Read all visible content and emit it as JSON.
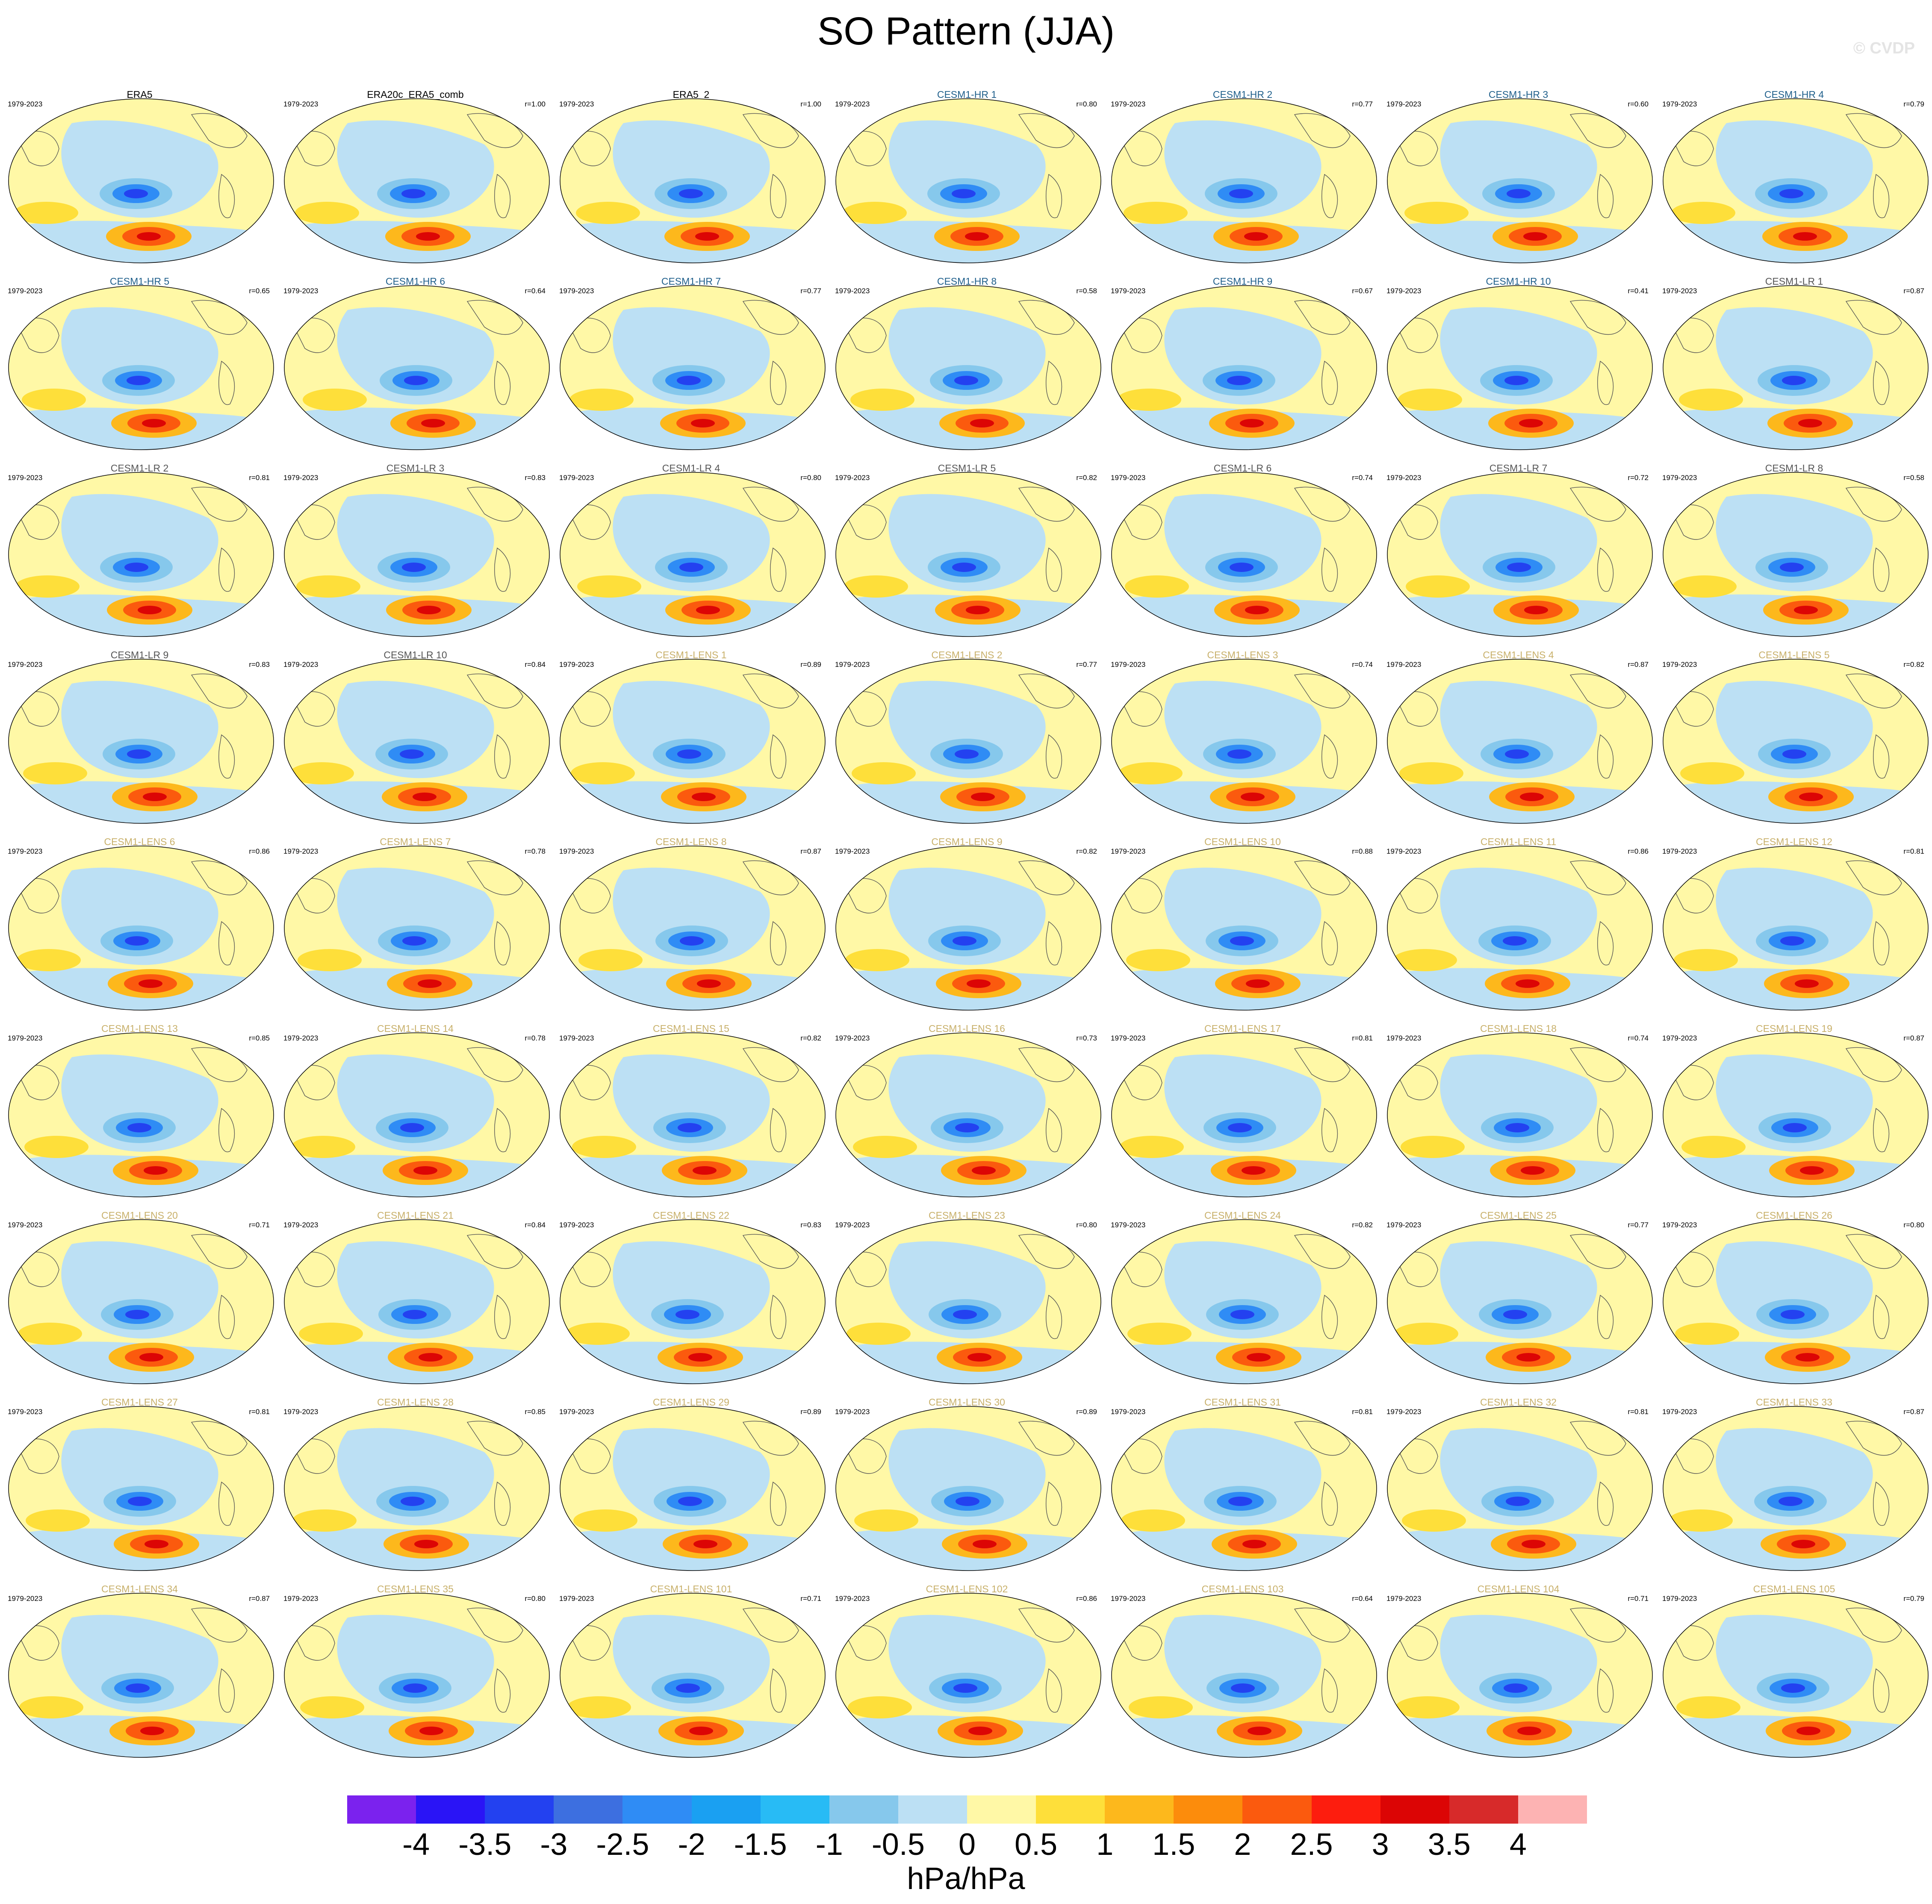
{
  "title": "SO Pattern (JJA)",
  "watermark": "© CVDP",
  "period": "1979-2023",
  "colors": {
    "reference": "#000000",
    "CESM1-HR": "#1f5f8b",
    "CESM1-LR": "#555555",
    "CESM1-LENS": "#c8b06a"
  },
  "panels": [
    {
      "title": "ERA5",
      "r": "",
      "group": "reference"
    },
    {
      "title": "ERA20c_ERA5_comb",
      "r": "r=1.00",
      "group": "reference"
    },
    {
      "title": "ERA5_2",
      "r": "r=1.00",
      "group": "reference"
    },
    {
      "title": "CESM1-HR 1",
      "r": "r=0.80",
      "group": "CESM1-HR"
    },
    {
      "title": "CESM1-HR 2",
      "r": "r=0.77",
      "group": "CESM1-HR"
    },
    {
      "title": "CESM1-HR 3",
      "r": "r=0.60",
      "group": "CESM1-HR"
    },
    {
      "title": "CESM1-HR 4",
      "r": "r=0.79",
      "group": "CESM1-HR"
    },
    {
      "title": "CESM1-HR 5",
      "r": "r=0.65",
      "group": "CESM1-HR"
    },
    {
      "title": "CESM1-HR 6",
      "r": "r=0.64",
      "group": "CESM1-HR"
    },
    {
      "title": "CESM1-HR 7",
      "r": "r=0.77",
      "group": "CESM1-HR"
    },
    {
      "title": "CESM1-HR 8",
      "r": "r=0.58",
      "group": "CESM1-HR"
    },
    {
      "title": "CESM1-HR 9",
      "r": "r=0.67",
      "group": "CESM1-HR"
    },
    {
      "title": "CESM1-HR 10",
      "r": "r=0.41",
      "group": "CESM1-HR"
    },
    {
      "title": "CESM1-LR 1",
      "r": "r=0.87",
      "group": "CESM1-LR"
    },
    {
      "title": "CESM1-LR 2",
      "r": "r=0.81",
      "group": "CESM1-LR"
    },
    {
      "title": "CESM1-LR 3",
      "r": "r=0.83",
      "group": "CESM1-LR"
    },
    {
      "title": "CESM1-LR 4",
      "r": "r=0.80",
      "group": "CESM1-LR"
    },
    {
      "title": "CESM1-LR 5",
      "r": "r=0.82",
      "group": "CESM1-LR"
    },
    {
      "title": "CESM1-LR 6",
      "r": "r=0.74",
      "group": "CESM1-LR"
    },
    {
      "title": "CESM1-LR 7",
      "r": "r=0.72",
      "group": "CESM1-LR"
    },
    {
      "title": "CESM1-LR 8",
      "r": "r=0.58",
      "group": "CESM1-LR"
    },
    {
      "title": "CESM1-LR 9",
      "r": "r=0.83",
      "group": "CESM1-LR"
    },
    {
      "title": "CESM1-LR 10",
      "r": "r=0.84",
      "group": "CESM1-LR"
    },
    {
      "title": "CESM1-LENS 1",
      "r": "r=0.89",
      "group": "CESM1-LENS"
    },
    {
      "title": "CESM1-LENS 2",
      "r": "r=0.77",
      "group": "CESM1-LENS"
    },
    {
      "title": "CESM1-LENS 3",
      "r": "r=0.74",
      "group": "CESM1-LENS"
    },
    {
      "title": "CESM1-LENS 4",
      "r": "r=0.87",
      "group": "CESM1-LENS"
    },
    {
      "title": "CESM1-LENS 5",
      "r": "r=0.82",
      "group": "CESM1-LENS"
    },
    {
      "title": "CESM1-LENS 6",
      "r": "r=0.86",
      "group": "CESM1-LENS"
    },
    {
      "title": "CESM1-LENS 7",
      "r": "r=0.78",
      "group": "CESM1-LENS"
    },
    {
      "title": "CESM1-LENS 8",
      "r": "r=0.87",
      "group": "CESM1-LENS"
    },
    {
      "title": "CESM1-LENS 9",
      "r": "r=0.82",
      "group": "CESM1-LENS"
    },
    {
      "title": "CESM1-LENS 10",
      "r": "r=0.88",
      "group": "CESM1-LENS"
    },
    {
      "title": "CESM1-LENS 11",
      "r": "r=0.86",
      "group": "CESM1-LENS"
    },
    {
      "title": "CESM1-LENS 12",
      "r": "r=0.81",
      "group": "CESM1-LENS"
    },
    {
      "title": "CESM1-LENS 13",
      "r": "r=0.85",
      "group": "CESM1-LENS"
    },
    {
      "title": "CESM1-LENS 14",
      "r": "r=0.78",
      "group": "CESM1-LENS"
    },
    {
      "title": "CESM1-LENS 15",
      "r": "r=0.82",
      "group": "CESM1-LENS"
    },
    {
      "title": "CESM1-LENS 16",
      "r": "r=0.73",
      "group": "CESM1-LENS"
    },
    {
      "title": "CESM1-LENS 17",
      "r": "r=0.81",
      "group": "CESM1-LENS"
    },
    {
      "title": "CESM1-LENS 18",
      "r": "r=0.74",
      "group": "CESM1-LENS"
    },
    {
      "title": "CESM1-LENS 19",
      "r": "r=0.87",
      "group": "CESM1-LENS"
    },
    {
      "title": "CESM1-LENS 20",
      "r": "r=0.71",
      "group": "CESM1-LENS"
    },
    {
      "title": "CESM1-LENS 21",
      "r": "r=0.84",
      "group": "CESM1-LENS"
    },
    {
      "title": "CESM1-LENS 22",
      "r": "r=0.83",
      "group": "CESM1-LENS"
    },
    {
      "title": "CESM1-LENS 23",
      "r": "r=0.80",
      "group": "CESM1-LENS"
    },
    {
      "title": "CESM1-LENS 24",
      "r": "r=0.82",
      "group": "CESM1-LENS"
    },
    {
      "title": "CESM1-LENS 25",
      "r": "r=0.77",
      "group": "CESM1-LENS"
    },
    {
      "title": "CESM1-LENS 26",
      "r": "r=0.80",
      "group": "CESM1-LENS"
    },
    {
      "title": "CESM1-LENS 27",
      "r": "r=0.81",
      "group": "CESM1-LENS"
    },
    {
      "title": "CESM1-LENS 28",
      "r": "r=0.85",
      "group": "CESM1-LENS"
    },
    {
      "title": "CESM1-LENS 29",
      "r": "r=0.89",
      "group": "CESM1-LENS"
    },
    {
      "title": "CESM1-LENS 30",
      "r": "r=0.89",
      "group": "CESM1-LENS"
    },
    {
      "title": "CESM1-LENS 31",
      "r": "r=0.81",
      "group": "CESM1-LENS"
    },
    {
      "title": "CESM1-LENS 32",
      "r": "r=0.81",
      "group": "CESM1-LENS"
    },
    {
      "title": "CESM1-LENS 33",
      "r": "r=0.87",
      "group": "CESM1-LENS"
    },
    {
      "title": "CESM1-LENS 34",
      "r": "r=0.87",
      "group": "CESM1-LENS"
    },
    {
      "title": "CESM1-LENS 35",
      "r": "r=0.80",
      "group": "CESM1-LENS"
    },
    {
      "title": "CESM1-LENS 101",
      "r": "r=0.71",
      "group": "CESM1-LENS"
    },
    {
      "title": "CESM1-LENS 102",
      "r": "r=0.86",
      "group": "CESM1-LENS"
    },
    {
      "title": "CESM1-LENS 103",
      "r": "r=0.64",
      "group": "CESM1-LENS"
    },
    {
      "title": "CESM1-LENS 104",
      "r": "r=0.71",
      "group": "CESM1-LENS"
    },
    {
      "title": "CESM1-LENS 105",
      "r": "r=0.79",
      "group": "CESM1-LENS"
    }
  ],
  "colorbar": {
    "colors": [
      "#7b22ee",
      "#2a14f6",
      "#2341f0",
      "#3d6fe0",
      "#2f8cf5",
      "#1aa0f2",
      "#28bbf5",
      "#86c8ec",
      "#bce0f4",
      "#fff8a6",
      "#fedf3a",
      "#fdb81c",
      "#fc8c0c",
      "#fb5a0e",
      "#fd1d0e",
      "#dc0505",
      "#d72a2a",
      "#fdb3b3"
    ],
    "labels": [
      "-4",
      "-3.5",
      "-3",
      "-2.5",
      "-2",
      "-1.5",
      "-1",
      "-0.5",
      "0",
      "0.5",
      "1",
      "1.5",
      "2",
      "2.5",
      "3",
      "3.5",
      "4"
    ],
    "units": "hPa/hPa"
  }
}
